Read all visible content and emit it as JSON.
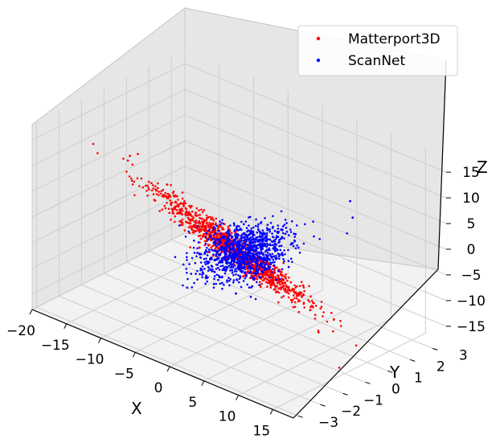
{
  "chart_data": {
    "type": "scatter",
    "title": "",
    "projection": "3d",
    "grid": true,
    "legend_position": "top-right",
    "axes": {
      "x": {
        "label": "X",
        "range": [
          -20,
          18
        ],
        "ticks": [
          -20,
          -15,
          -10,
          -5,
          0,
          5,
          10,
          15
        ]
      },
      "y": {
        "label": "Y",
        "range": [
          -3.2,
          3.6
        ],
        "ticks": [
          -3,
          -2,
          -1,
          0,
          1,
          2,
          3
        ]
      },
      "z": {
        "label": "Z",
        "range": [
          -18,
          18
        ],
        "ticks": [
          -15,
          -10,
          -5,
          0,
          5,
          10,
          15
        ]
      }
    },
    "series": [
      {
        "name": "Matterport3D",
        "color": "#ff0000",
        "distribution": {
          "description": "elongated thin cluster along X, near-planar",
          "count": 1200,
          "center": {
            "x": -2,
            "y": 0.3,
            "z": -4
          },
          "spread": {
            "x": 5.5,
            "y": 0.25,
            "z": 0.6
          },
          "outliers": [
            {
              "x": -19.5,
              "y": 1.0,
              "z": 3.0
            },
            {
              "x": -19,
              "y": 1.2,
              "z": 3.2
            },
            {
              "x": 16.5,
              "y": -0.7,
              "z": -14.5
            },
            {
              "x": 12.5,
              "y": -0.4,
              "z": -10.5
            }
          ]
        }
      },
      {
        "name": "ScanNet",
        "color": "#0000ff",
        "distribution": {
          "description": "compact dense cloud",
          "count": 1100,
          "center": {
            "x": 0,
            "y": 0.1,
            "z": -3
          },
          "spread": {
            "x": 2.0,
            "y": 0.8,
            "z": 1.8
          },
          "outliers": [
            {
              "x": 6,
              "y": 3,
              "z": 4
            },
            {
              "x": -3,
              "y": -1.5,
              "z": -8
            },
            {
              "x": 8,
              "y": 2.5,
              "z": 3
            }
          ]
        }
      }
    ]
  }
}
